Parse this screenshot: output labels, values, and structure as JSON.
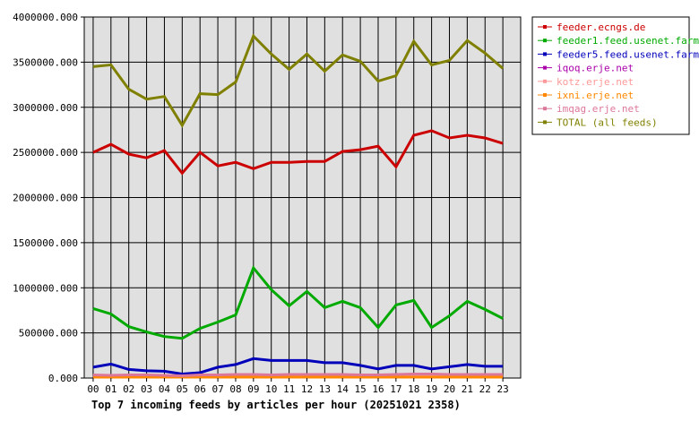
{
  "chart_data": {
    "type": "line",
    "title": "Top 7 incoming feeds by articles per hour (20251021 2358)",
    "categories": [
      "00",
      "01",
      "02",
      "03",
      "04",
      "05",
      "06",
      "07",
      "08",
      "09",
      "10",
      "11",
      "12",
      "13",
      "14",
      "15",
      "16",
      "17",
      "18",
      "19",
      "20",
      "21",
      "22",
      "23"
    ],
    "ylim": [
      0,
      4000000
    ],
    "yticks": [
      "0.000",
      "500000.000",
      "1000000.000",
      "1500000.000",
      "2000000.000",
      "2500000.000",
      "3000000.000",
      "3500000.000",
      "4000000.000"
    ],
    "grid": true,
    "legend_position": "top-right",
    "series": [
      {
        "name": "feeder.ecngs.de",
        "color": "#cc0000",
        "values": [
          2500000,
          2590000,
          2480000,
          2440000,
          2520000,
          2270000,
          2500000,
          2350000,
          2390000,
          2320000,
          2390000,
          2390000,
          2400000,
          2400000,
          2510000,
          2530000,
          2570000,
          2340000,
          2690000,
          2740000,
          2660000,
          2690000,
          2660000,
          2600000
        ]
      },
      {
        "name": "feeder1.feed.usenet.farm",
        "color": "#00aa00",
        "values": [
          770000,
          710000,
          570000,
          510000,
          460000,
          440000,
          550000,
          620000,
          700000,
          1220000,
          980000,
          800000,
          960000,
          780000,
          850000,
          780000,
          560000,
          810000,
          860000,
          560000,
          690000,
          850000,
          760000,
          660000
        ]
      },
      {
        "name": "feeder5.feed.usenet.farm",
        "color": "#0000bb",
        "values": [
          120000,
          155000,
          95000,
          80000,
          75000,
          45000,
          60000,
          120000,
          150000,
          215000,
          195000,
          195000,
          195000,
          170000,
          170000,
          140000,
          100000,
          140000,
          140000,
          100000,
          125000,
          150000,
          130000,
          130000
        ]
      },
      {
        "name": "iqoq.erje.net",
        "color": "#aa00aa",
        "values": [
          15000,
          15000,
          15000,
          15000,
          15000,
          15000,
          15000,
          15000,
          15000,
          15000,
          15000,
          15000,
          15000,
          15000,
          15000,
          15000,
          15000,
          15000,
          15000,
          15000,
          15000,
          15000,
          15000,
          15000
        ]
      },
      {
        "name": "kotz.erje.net",
        "color": "#ff9999",
        "values": [
          25000,
          20000,
          25000,
          25000,
          20000,
          20000,
          25000,
          25000,
          30000,
          30000,
          25000,
          30000,
          30000,
          30000,
          30000,
          25000,
          25000,
          30000,
          35000,
          35000,
          30000,
          30000,
          30000,
          30000
        ]
      },
      {
        "name": "ixni.erje.net",
        "color": "#ff8800",
        "values": [
          10000,
          10000,
          10000,
          10000,
          10000,
          10000,
          10000,
          10000,
          10000,
          10000,
          10000,
          10000,
          10000,
          10000,
          10000,
          10000,
          10000,
          10000,
          10000,
          10000,
          10000,
          10000,
          10000,
          10000
        ]
      },
      {
        "name": "imqag.erje.net",
        "color": "#dd7799",
        "values": [
          35000,
          30000,
          35000,
          35000,
          30000,
          25000,
          35000,
          35000,
          40000,
          40000,
          35000,
          40000,
          40000,
          40000,
          40000,
          35000,
          35000,
          40000,
          45000,
          45000,
          40000,
          40000,
          40000,
          40000
        ]
      },
      {
        "name": "TOTAL (all feeds)",
        "color": "#808000",
        "values": [
          3450000,
          3470000,
          3200000,
          3090000,
          3120000,
          2800000,
          3150000,
          3140000,
          3280000,
          3790000,
          3590000,
          3420000,
          3590000,
          3400000,
          3580000,
          3510000,
          3290000,
          3350000,
          3730000,
          3470000,
          3520000,
          3740000,
          3600000,
          3430000
        ]
      }
    ]
  }
}
